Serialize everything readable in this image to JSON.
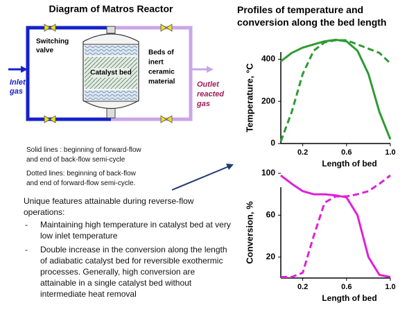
{
  "diagram": {
    "title": "Diagram of Matros Reactor",
    "valve_label": [
      "Switching",
      "valve"
    ],
    "beds_label": [
      "Beds of",
      "inert",
      "ceramic",
      "material"
    ],
    "catalyst_label": "Catalyst bed",
    "inlet_label": [
      "Inlet",
      "gas"
    ],
    "outlet_label": [
      "Outlet",
      "reacted",
      "gas"
    ]
  },
  "notes": {
    "solid": [
      "Solid lines : beginning of forward-flow",
      "and end of back-flow semi-cycle"
    ],
    "dotted": [
      "Dotted lines: beginning of back-flow",
      "and end of forward-flow semi-cycle."
    ],
    "features_title": "Unique features attainable during reverse-flow operations:",
    "bullets": [
      "Maintaining high temperature in catalyst bed at very  low inlet temperature",
      "Double increase in the conversion along the length of adiabatic catalyst bed for reversible exothermic processes. Generally, high conversion are attainable in a single catalyst bed without intermediate heat removal"
    ]
  },
  "profiles_title": "Profiles of temperature and conversion along the bed length",
  "chart_data": [
    {
      "type": "line",
      "x_label": "Length of bed",
      "y_label": "Temperature, °C",
      "x": [
        0,
        0.1,
        0.2,
        0.3,
        0.4,
        0.5,
        0.6,
        0.7,
        0.8,
        0.9,
        1
      ],
      "series": [
        {
          "color": "#2e9a35",
          "dashed": false,
          "values": [
            390,
            430,
            455,
            470,
            485,
            492,
            485,
            440,
            330,
            150,
            20
          ]
        },
        {
          "color": "#2e9a35",
          "dashed": true,
          "values": [
            10,
            150,
            330,
            440,
            480,
            490,
            490,
            470,
            450,
            430,
            380
          ]
        }
      ],
      "xlim": [
        0,
        1
      ],
      "xticks": [
        0.2,
        0.6,
        {
          "value": 1,
          "label": "1.0"
        }
      ],
      "ylim": [
        0,
        500
      ],
      "yticks": [
        0,
        200,
        400
      ]
    },
    {
      "type": "line",
      "x_label": "Length of bed",
      "y_label": "Conversion, %",
      "x": [
        0,
        0.1,
        0.2,
        0.3,
        0.4,
        0.5,
        0.6,
        0.7,
        0.8,
        0.9,
        1
      ],
      "series": [
        {
          "color": "#e020d8",
          "dashed": false,
          "values": [
            98,
            90,
            83,
            80,
            80,
            79,
            77,
            60,
            20,
            3,
            1
          ]
        },
        {
          "color": "#e020d8",
          "dashed": true,
          "values": [
            1,
            1,
            5,
            40,
            72,
            78,
            78,
            80,
            83,
            90,
            98
          ]
        }
      ],
      "xlim": [
        0,
        1
      ],
      "xticks": [
        0.2,
        0.6,
        {
          "value": 1,
          "label": "1.0"
        }
      ],
      "ylim": [
        0,
        100
      ],
      "yticks": [
        20,
        60,
        100
      ]
    }
  ]
}
